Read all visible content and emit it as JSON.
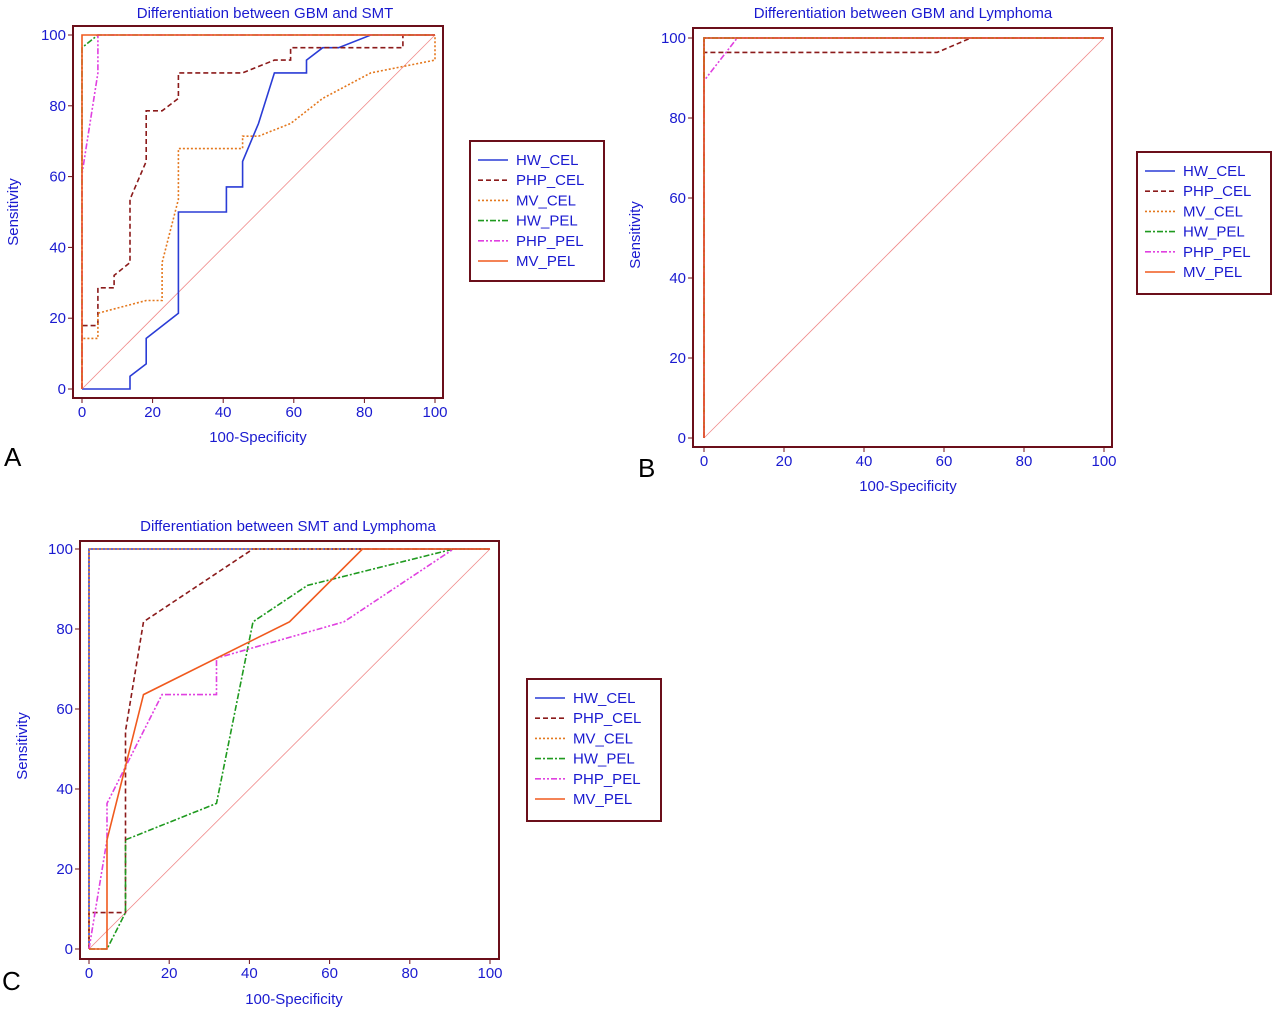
{
  "panel_letters": [
    "A",
    "B",
    "C"
  ],
  "legend_style": {
    "HW_CEL": {
      "color": "#2a3cd6",
      "dash": ""
    },
    "PHP_CEL": {
      "color": "#8b1a1a",
      "dash": "5,3"
    },
    "MV_CEL": {
      "color": "#e4781e",
      "dash": "2,2"
    },
    "HW_PEL": {
      "color": "#1f9a1f",
      "dash": "6,2,2,2"
    },
    "PHP_PEL": {
      "color": "#e040e0",
      "dash": "6,2,2,2,2,2"
    },
    "MV_PEL": {
      "color": "#f05a1e",
      "dash": ""
    }
  },
  "chart_data": [
    {
      "type": "line",
      "panel": "A",
      "title": "Differentiation between GBM and SMT",
      "xlabel": "100-Specificity",
      "ylabel": "Sensitivity",
      "xlim": [
        0,
        100
      ],
      "ylim": [
        0,
        100
      ],
      "xticks": [
        0,
        20,
        40,
        60,
        80,
        100
      ],
      "yticks": [
        0,
        20,
        40,
        60,
        80,
        100
      ],
      "diagonal": true,
      "legend": [
        "HW_CEL",
        "PHP_CEL",
        "MV_CEL",
        "HW_PEL",
        "PHP_PEL",
        "MV_PEL"
      ],
      "series": [
        {
          "name": "HW_CEL",
          "points": [
            [
              0,
              0
            ],
            [
              13.6,
              0
            ],
            [
              13.6,
              3.6
            ],
            [
              18.2,
              7.1
            ],
            [
              18.2,
              14.3
            ],
            [
              27.3,
              21.4
            ],
            [
              27.3,
              50
            ],
            [
              40.9,
              50
            ],
            [
              40.9,
              57.1
            ],
            [
              45.5,
              57.1
            ],
            [
              45.5,
              64.3
            ],
            [
              50,
              75
            ],
            [
              54.5,
              89.3
            ],
            [
              59.1,
              89.3
            ],
            [
              63.6,
              89.3
            ],
            [
              63.6,
              92.9
            ],
            [
              68.2,
              96.4
            ],
            [
              72.7,
              96.4
            ],
            [
              81.8,
              100
            ],
            [
              100,
              100
            ]
          ]
        },
        {
          "name": "PHP_CEL",
          "points": [
            [
              0,
              0
            ],
            [
              0,
              17.9
            ],
            [
              4.5,
              17.9
            ],
            [
              4.5,
              28.6
            ],
            [
              9.1,
              28.6
            ],
            [
              9.1,
              32.1
            ],
            [
              13.6,
              35.7
            ],
            [
              13.6,
              53.6
            ],
            [
              18.2,
              64.3
            ],
            [
              18.2,
              78.6
            ],
            [
              22.7,
              78.6
            ],
            [
              27.3,
              82.1
            ],
            [
              27.3,
              89.3
            ],
            [
              45.5,
              89.3
            ],
            [
              54.5,
              92.9
            ],
            [
              59.1,
              92.9
            ],
            [
              59.1,
              96.4
            ],
            [
              90.9,
              96.4
            ],
            [
              90.9,
              100
            ],
            [
              100,
              100
            ]
          ]
        },
        {
          "name": "MV_CEL",
          "points": [
            [
              0,
              0
            ],
            [
              0,
              14.3
            ],
            [
              4.5,
              14.3
            ],
            [
              4.5,
              21.4
            ],
            [
              18.2,
              25
            ],
            [
              22.7,
              25
            ],
            [
              22.7,
              35.7
            ],
            [
              27.3,
              53.6
            ],
            [
              27.3,
              67.9
            ],
            [
              45.5,
              67.9
            ],
            [
              45.5,
              71.4
            ],
            [
              50,
              71.4
            ],
            [
              59.1,
              75
            ],
            [
              68.2,
              82.1
            ],
            [
              81.8,
              89.3
            ],
            [
              100,
              92.9
            ],
            [
              100,
              100
            ]
          ]
        },
        {
          "name": "HW_PEL",
          "points": [
            [
              0,
              0
            ],
            [
              0,
              96.4
            ],
            [
              4.5,
              100
            ],
            [
              100,
              100
            ]
          ]
        },
        {
          "name": "PHP_PEL",
          "points": [
            [
              0,
              0
            ],
            [
              0,
              60.7
            ],
            [
              4.5,
              89.3
            ],
            [
              4.5,
              100
            ],
            [
              100,
              100
            ]
          ]
        },
        {
          "name": "MV_PEL",
          "points": [
            [
              0,
              0
            ],
            [
              0,
              100
            ],
            [
              100,
              100
            ]
          ]
        }
      ]
    },
    {
      "type": "line",
      "panel": "B",
      "title": "Differentiation between GBM and Lymphoma",
      "xlabel": "100-Specificity",
      "ylabel": "Sensitivity",
      "xlim": [
        0,
        100
      ],
      "ylim": [
        0,
        100
      ],
      "xticks": [
        0,
        20,
        40,
        60,
        80,
        100
      ],
      "yticks": [
        0,
        20,
        40,
        60,
        80,
        100
      ],
      "diagonal": true,
      "legend": [
        "HW_CEL",
        "PHP_CEL",
        "MV_CEL",
        "HW_PEL",
        "PHP_PEL",
        "MV_PEL"
      ],
      "series": [
        {
          "name": "HW_CEL",
          "points": [
            [
              0,
              0
            ],
            [
              0,
              100
            ],
            [
              100,
              100
            ]
          ]
        },
        {
          "name": "PHP_CEL",
          "points": [
            [
              0,
              0
            ],
            [
              0,
              96.4
            ],
            [
              58.3,
              96.4
            ],
            [
              66.7,
              100
            ],
            [
              100,
              100
            ]
          ]
        },
        {
          "name": "MV_CEL",
          "points": [
            [
              0,
              0
            ],
            [
              0,
              100
            ],
            [
              100,
              100
            ]
          ]
        },
        {
          "name": "HW_PEL",
          "points": [
            [
              0,
              0
            ],
            [
              0,
              100
            ],
            [
              100,
              100
            ]
          ]
        },
        {
          "name": "PHP_PEL",
          "points": [
            [
              0,
              0
            ],
            [
              0,
              89.3
            ],
            [
              8.3,
              100
            ],
            [
              100,
              100
            ]
          ]
        },
        {
          "name": "MV_PEL",
          "points": [
            [
              0,
              0
            ],
            [
              0,
              100
            ],
            [
              100,
              100
            ]
          ]
        }
      ]
    },
    {
      "type": "line",
      "panel": "C",
      "title": "Differentiation between SMT and Lymphoma",
      "xlabel": "100-Specificity",
      "ylabel": "Sensitivity",
      "xlim": [
        0,
        100
      ],
      "ylim": [
        0,
        100
      ],
      "xticks": [
        0,
        20,
        40,
        60,
        80,
        100
      ],
      "yticks": [
        0,
        20,
        40,
        60,
        80,
        100
      ],
      "diagonal": true,
      "legend": [
        "HW_CEL",
        "PHP_CEL",
        "MV_CEL",
        "HW_PEL",
        "PHP_PEL",
        "MV_PEL"
      ],
      "series": [
        {
          "name": "HW_CEL",
          "points": [
            [
              0,
              0
            ],
            [
              0,
              100
            ],
            [
              100,
              100
            ]
          ]
        },
        {
          "name": "PHP_CEL",
          "points": [
            [
              0,
              0
            ],
            [
              0,
              9.1
            ],
            [
              9.1,
              9.1
            ],
            [
              9.1,
              54.5
            ],
            [
              13.6,
              81.8
            ],
            [
              40.9,
              100
            ],
            [
              100,
              100
            ]
          ]
        },
        {
          "name": "MV_CEL",
          "points": [
            [
              0,
              0
            ],
            [
              0,
              100
            ],
            [
              100,
              100
            ]
          ]
        },
        {
          "name": "HW_PEL",
          "points": [
            [
              0,
              0
            ],
            [
              4.5,
              0
            ],
            [
              9.1,
              9.1
            ],
            [
              9.1,
              27.3
            ],
            [
              31.8,
              36.4
            ],
            [
              40.9,
              81.8
            ],
            [
              54.5,
              90.9
            ],
            [
              90.9,
              100
            ],
            [
              100,
              100
            ]
          ]
        },
        {
          "name": "PHP_PEL",
          "points": [
            [
              0,
              0
            ],
            [
              4.5,
              27.3
            ],
            [
              4.5,
              36.4
            ],
            [
              18.2,
              63.6
            ],
            [
              31.8,
              63.6
            ],
            [
              31.8,
              72.7
            ],
            [
              63.6,
              81.8
            ],
            [
              90.9,
              100
            ],
            [
              100,
              100
            ]
          ]
        },
        {
          "name": "MV_PEL",
          "points": [
            [
              0,
              0
            ],
            [
              4.5,
              0
            ],
            [
              4.5,
              27.3
            ],
            [
              13.6,
              63.6
            ],
            [
              50,
              81.8
            ],
            [
              68.2,
              100
            ],
            [
              100,
              100
            ]
          ]
        }
      ]
    }
  ]
}
